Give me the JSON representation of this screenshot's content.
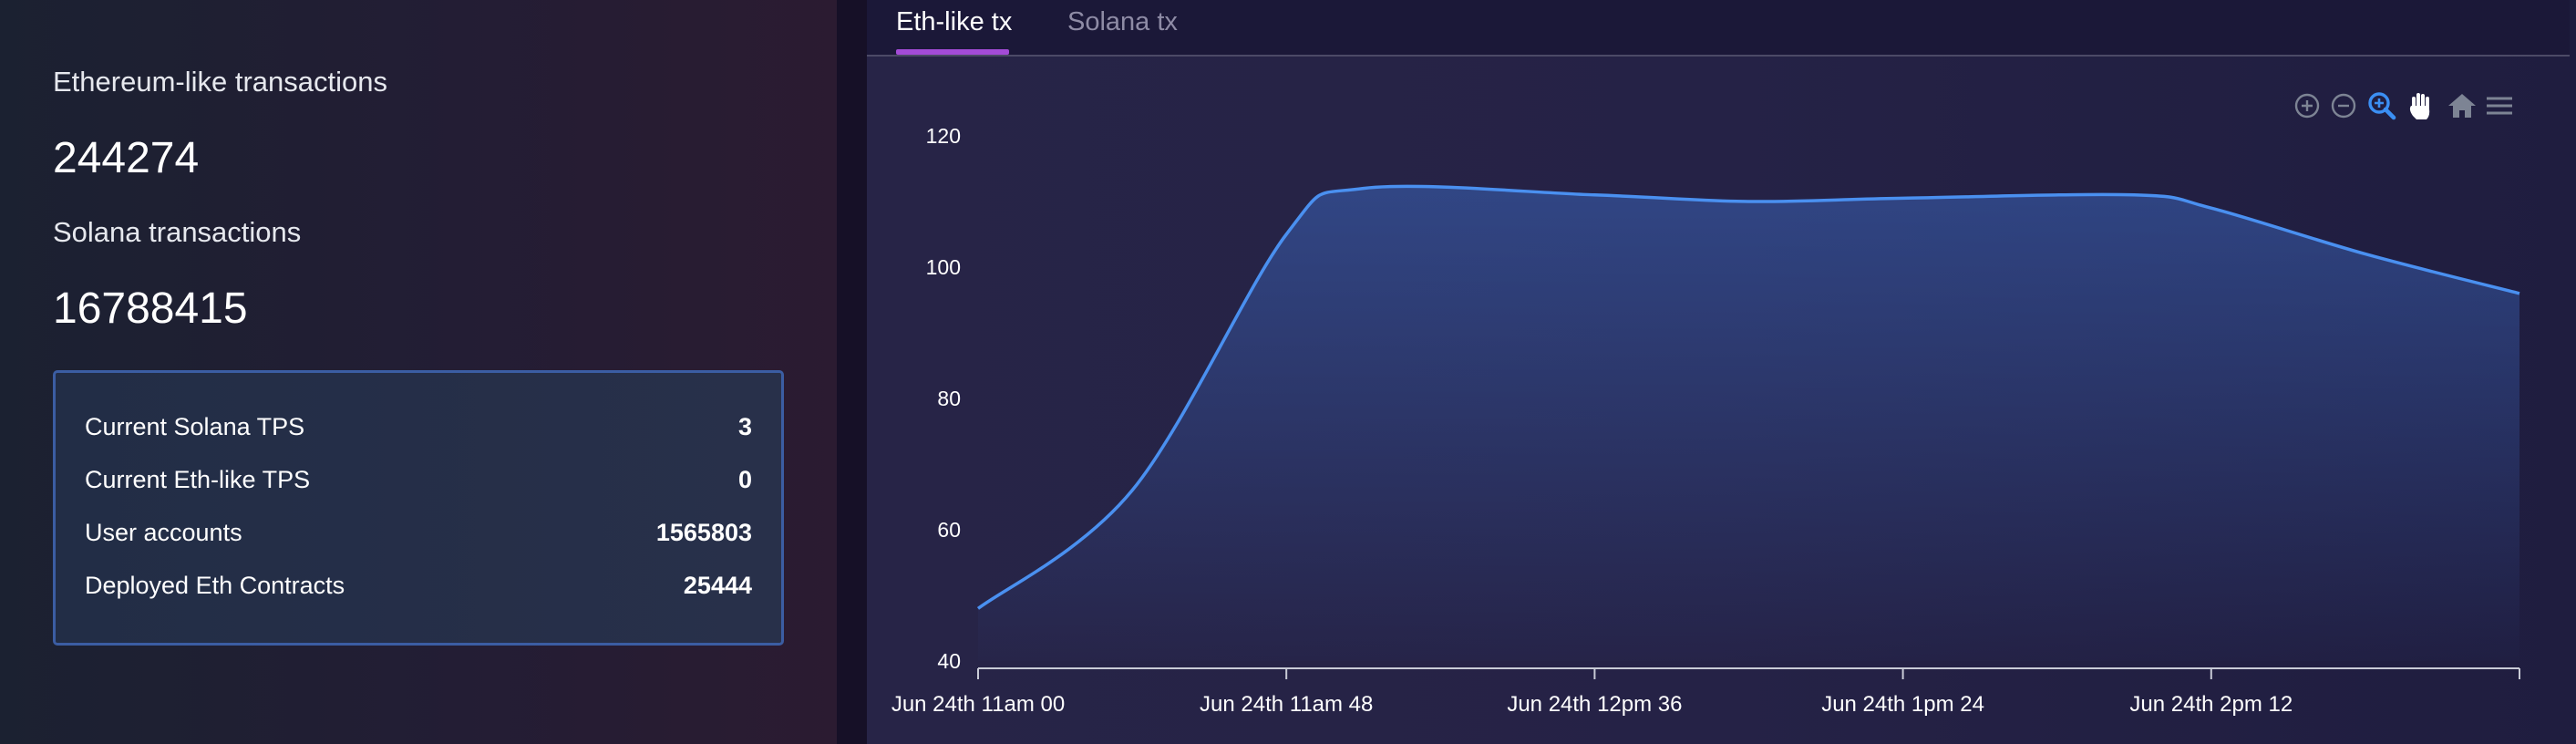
{
  "summary": {
    "eth_label": "Ethereum-like transactions",
    "eth_value": "244274",
    "sol_label": "Solana transactions",
    "sol_value": "16788415"
  },
  "stats": [
    {
      "label": "Current Solana TPS",
      "value": "3"
    },
    {
      "label": "Current Eth-like TPS",
      "value": "0"
    },
    {
      "label": "User accounts",
      "value": "1565803"
    },
    {
      "label": "Deployed Eth Contracts",
      "value": "25444"
    }
  ],
  "tabs": [
    {
      "label": "Eth-like tx",
      "active": true
    },
    {
      "label": "Solana tx",
      "active": false
    }
  ],
  "toolbar": {
    "icons": [
      "zoom-in-icon",
      "zoom-out-icon",
      "zoom-selection-icon",
      "pan-hand-icon",
      "reset-home-icon",
      "menu-icon"
    ],
    "active_icon": "zoom-selection-icon",
    "active_color": "#3b8ff3",
    "idle_color": "#7d8494"
  },
  "colors": {
    "line": "#4a90f0",
    "area_top": "#3a63b8",
    "tab_underline": "#a34bd7",
    "box_border": "#3b5da3"
  },
  "chart_data": {
    "type": "area",
    "title": "",
    "xlabel": "",
    "ylabel": "",
    "ylim": [
      40,
      120
    ],
    "yticks": [
      40,
      60,
      80,
      100,
      120
    ],
    "xtick_labels": [
      "Jun 24th 11am 00",
      "Jun 24th 11am 48",
      "Jun 24th 12pm 36",
      "Jun 24th 1pm 24",
      "Jun 24th 2pm 12"
    ],
    "xlim": [
      0,
      240
    ],
    "xtick_minutes": [
      0,
      48,
      96,
      144,
      192
    ],
    "series": [
      {
        "x": [
          0,
          24,
          48,
          60,
          96,
          120,
          144,
          180,
          192,
          216,
          240
        ],
        "y": [
          48,
          66,
          105,
          112,
          111,
          110,
          110.5,
          111,
          109,
          102,
          96
        ]
      }
    ]
  }
}
